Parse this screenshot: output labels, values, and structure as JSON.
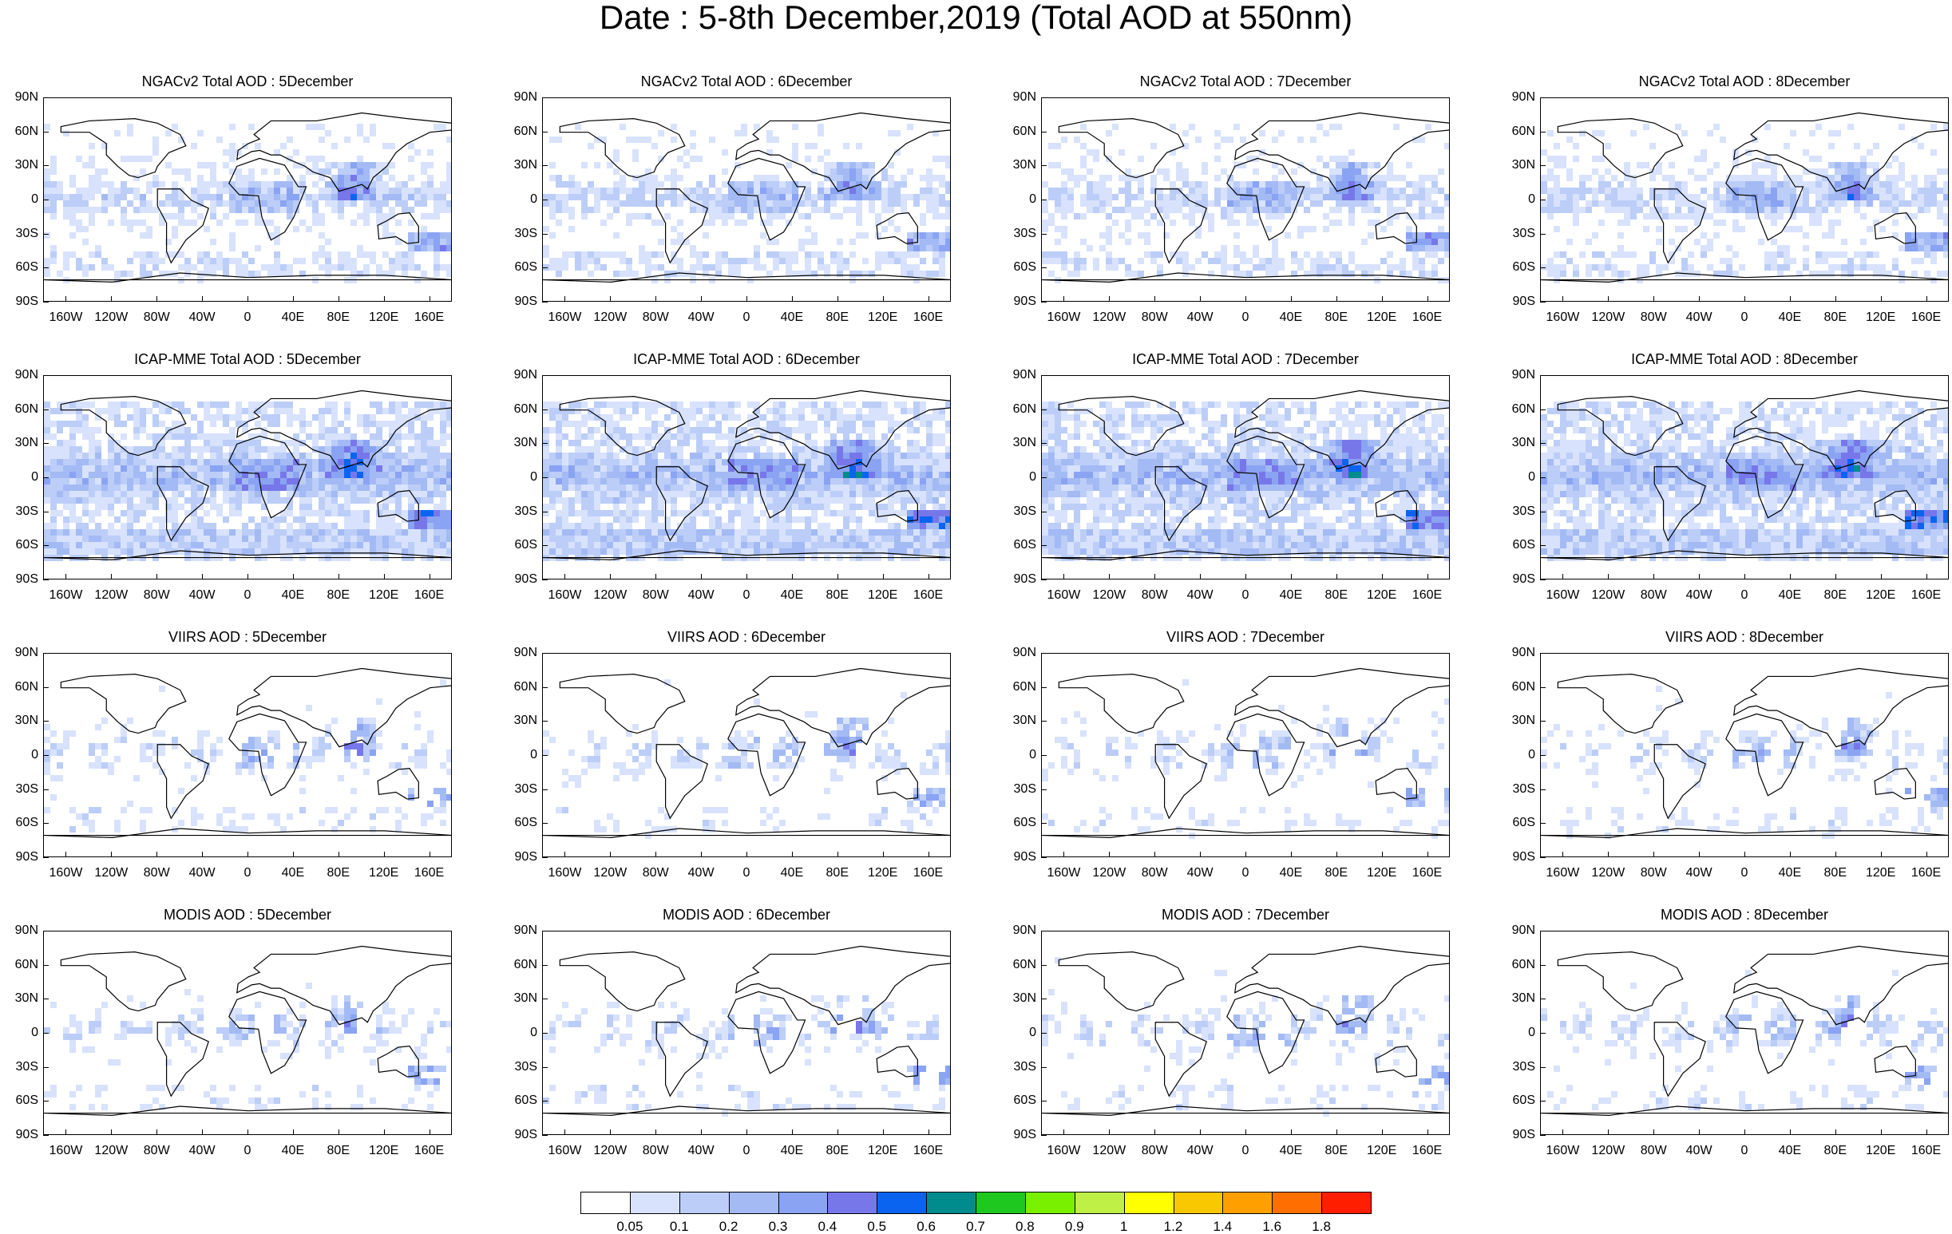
{
  "page": {
    "title": "Date : 5-8th December,2019 (Total AOD at 550nm)"
  },
  "chart_data": [
    {
      "type": "heatmap",
      "title": "NGACv2 Total AOD : 5December",
      "product": "NGACv2",
      "date": "5December",
      "ylim": [
        "90S",
        "90N"
      ],
      "xlim": [
        "180W",
        "180E"
      ]
    },
    {
      "type": "heatmap",
      "title": "NGACv2 Total AOD : 6December",
      "product": "NGACv2",
      "date": "6December",
      "ylim": [
        "90S",
        "90N"
      ],
      "xlim": [
        "180W",
        "180E"
      ]
    },
    {
      "type": "heatmap",
      "title": "NGACv2 Total AOD : 7December",
      "product": "NGACv2",
      "date": "7December",
      "ylim": [
        "90S",
        "90N"
      ],
      "xlim": [
        "180W",
        "180E"
      ]
    },
    {
      "type": "heatmap",
      "title": "NGACv2 Total AOD : 8December",
      "product": "NGACv2",
      "date": "8December",
      "ylim": [
        "90S",
        "90N"
      ],
      "xlim": [
        "180W",
        "180E"
      ]
    },
    {
      "type": "heatmap",
      "title": "ICAP-MME Total AOD : 5December",
      "product": "ICAP-MME",
      "date": "5December",
      "ylim": [
        "90S",
        "90N"
      ],
      "xlim": [
        "180W",
        "180E"
      ]
    },
    {
      "type": "heatmap",
      "title": "ICAP-MME Total AOD : 6December",
      "product": "ICAP-MME",
      "date": "6December",
      "ylim": [
        "90S",
        "90N"
      ],
      "xlim": [
        "180W",
        "180E"
      ]
    },
    {
      "type": "heatmap",
      "title": "ICAP-MME Total AOD : 7December",
      "product": "ICAP-MME",
      "date": "7December",
      "ylim": [
        "90S",
        "90N"
      ],
      "xlim": [
        "180W",
        "180E"
      ]
    },
    {
      "type": "heatmap",
      "title": "ICAP-MME Total AOD : 8December",
      "product": "ICAP-MME",
      "date": "8December",
      "ylim": [
        "90S",
        "90N"
      ],
      "xlim": [
        "180W",
        "180E"
      ]
    },
    {
      "type": "heatmap",
      "title": "VIIRS AOD : 5December",
      "product": "VIIRS",
      "date": "5December",
      "ylim": [
        "90S",
        "90N"
      ],
      "xlim": [
        "180W",
        "180E"
      ]
    },
    {
      "type": "heatmap",
      "title": "VIIRS AOD : 6December",
      "product": "VIIRS",
      "date": "6December",
      "ylim": [
        "90S",
        "90N"
      ],
      "xlim": [
        "180W",
        "180E"
      ]
    },
    {
      "type": "heatmap",
      "title": "VIIRS AOD : 7December",
      "product": "VIIRS",
      "date": "7December",
      "ylim": [
        "90S",
        "90N"
      ],
      "xlim": [
        "180W",
        "180E"
      ]
    },
    {
      "type": "heatmap",
      "title": "VIIRS AOD : 8December",
      "product": "VIIRS",
      "date": "8December",
      "ylim": [
        "90S",
        "90N"
      ],
      "xlim": [
        "180W",
        "180E"
      ]
    },
    {
      "type": "heatmap",
      "title": "MODIS AOD : 5December",
      "product": "MODIS",
      "date": "5December",
      "ylim": [
        "90S",
        "90N"
      ],
      "xlim": [
        "180W",
        "180E"
      ]
    },
    {
      "type": "heatmap",
      "title": "MODIS AOD : 6December",
      "product": "MODIS",
      "date": "6December",
      "ylim": [
        "90S",
        "90N"
      ],
      "xlim": [
        "180W",
        "180E"
      ]
    },
    {
      "type": "heatmap",
      "title": "MODIS AOD : 7December",
      "product": "MODIS",
      "date": "7December",
      "ylim": [
        "90S",
        "90N"
      ],
      "xlim": [
        "180W",
        "180E"
      ]
    },
    {
      "type": "heatmap",
      "title": "MODIS AOD : 8December",
      "product": "MODIS",
      "date": "8December",
      "ylim": [
        "90S",
        "90N"
      ],
      "xlim": [
        "180W",
        "180E"
      ]
    }
  ],
  "axes": {
    "lat_ticks": [
      "90N",
      "60N",
      "30N",
      "0",
      "30S",
      "60S",
      "90S"
    ],
    "lon_ticks": [
      "160W",
      "120W",
      "80W",
      "40W",
      "0",
      "40E",
      "80E",
      "120E",
      "160E"
    ]
  },
  "colorbar": {
    "labels": [
      "0.05",
      "0.1",
      "0.2",
      "0.3",
      "0.4",
      "0.5",
      "0.6",
      "0.7",
      "0.8",
      "0.9",
      "1",
      "1.2",
      "1.4",
      "1.6",
      "1.8"
    ],
    "colors": [
      "#ffffff",
      "#d8e2fc",
      "#bccdf8",
      "#a3baf4",
      "#8aa3f2",
      "#7777ea",
      "#0a64f0",
      "#008c8c",
      "#1ec81e",
      "#78f000",
      "#bef046",
      "#ffff00",
      "#fac800",
      "#ffa000",
      "#ff6e00",
      "#ff1e00"
    ]
  }
}
